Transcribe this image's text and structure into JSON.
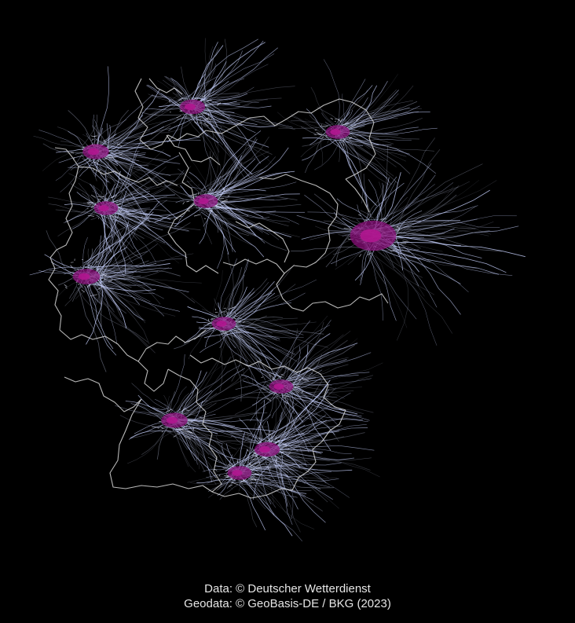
{
  "credits": {
    "data": "Data: © Deutscher Wetterdienst",
    "geodata": "Geodata: © GeoBasis-DE / BKG (2023)"
  },
  "colors": {
    "background": "#000000",
    "boundary": "#d9d9d9",
    "streak_light": "#c8d2ff",
    "streak_dim": "#9aa0b8",
    "core": "#8a0f7a",
    "core_bright": "#b0168f"
  },
  "map": {
    "subject": "Germany state boundaries with wind trajectory clusters",
    "clusters": [
      {
        "name": "north-sea-west",
        "intensity": 0.7
      },
      {
        "name": "hamburg-north",
        "intensity": 0.75
      },
      {
        "name": "rostock-northeast",
        "intensity": 0.6
      },
      {
        "name": "bremen-west",
        "intensity": 0.7
      },
      {
        "name": "hannover-center",
        "intensity": 0.7
      },
      {
        "name": "berlin-east",
        "intensity": 1.0
      },
      {
        "name": "rhine-west",
        "intensity": 0.75
      },
      {
        "name": "hesse-center",
        "intensity": 0.65
      },
      {
        "name": "franconia",
        "intensity": 0.65
      },
      {
        "name": "stuttgart-southwest",
        "intensity": 0.7
      },
      {
        "name": "munich-south",
        "intensity": 0.75
      },
      {
        "name": "allgaeu-south",
        "intensity": 0.6
      }
    ]
  }
}
